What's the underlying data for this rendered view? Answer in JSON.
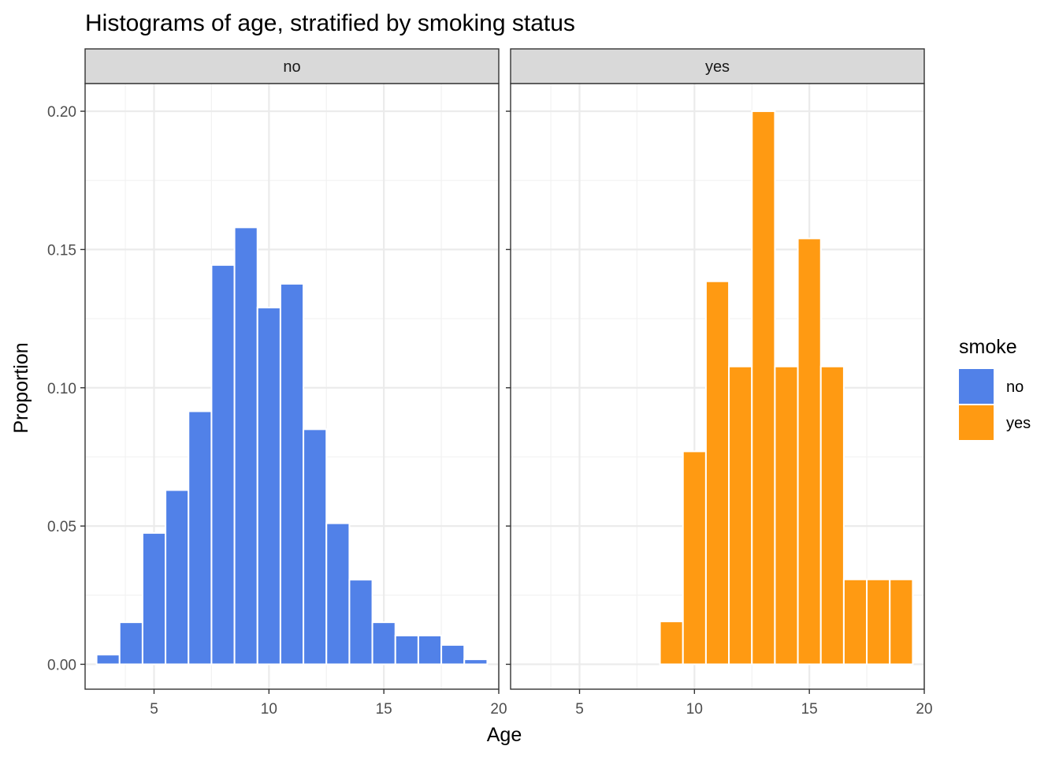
{
  "chart_data": {
    "type": "bar",
    "title": "Histograms of age, stratified by smoking status",
    "xlabel": "Age",
    "ylabel": "Proportion",
    "xlim": [
      2,
      20
    ],
    "ylim": [
      -0.009,
      0.21
    ],
    "x_ticks": [
      5,
      10,
      15,
      20
    ],
    "y_ticks": [
      0.0,
      0.05,
      0.1,
      0.15,
      0.2
    ],
    "x_tick_labels": [
      "5",
      "10",
      "15",
      "20"
    ],
    "y_tick_labels": [
      "0.00",
      "0.05",
      "0.10",
      "0.15",
      "0.20"
    ],
    "grid": true,
    "bin_width": 1,
    "legend": {
      "title": "smoke",
      "position": "right",
      "entries": [
        {
          "label": "no",
          "color": "#5181E8"
        },
        {
          "label": "yes",
          "color": "#FF9A12"
        }
      ]
    },
    "facets": [
      {
        "strip_label": "no",
        "fill": "#5181E8",
        "x": [
          3,
          4,
          5,
          6,
          7,
          8,
          9,
          10,
          11,
          12,
          13,
          14,
          15,
          16,
          17,
          18,
          19
        ],
        "values": [
          0.0035,
          0.0152,
          0.0475,
          0.063,
          0.0915,
          0.1444,
          0.158,
          0.129,
          0.1376,
          0.085,
          0.051,
          0.0306,
          0.0152,
          0.0104,
          0.0104,
          0.007,
          0.0018
        ]
      },
      {
        "strip_label": "yes",
        "fill": "#FF9A12",
        "x": [
          9,
          10,
          11,
          12,
          13,
          14,
          15,
          16,
          17,
          18,
          19
        ],
        "values": [
          0.0155,
          0.077,
          0.1385,
          0.1077,
          0.2,
          0.1077,
          0.154,
          0.1077,
          0.0307,
          0.0307,
          0.0307
        ]
      }
    ]
  }
}
